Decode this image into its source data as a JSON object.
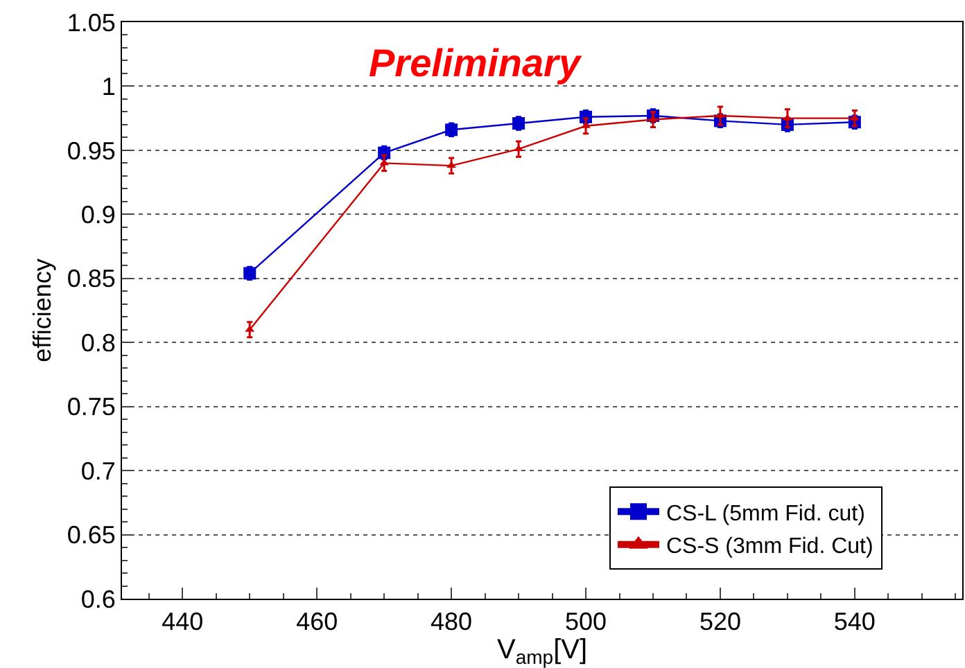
{
  "chart_data": {
    "type": "line",
    "xlabel": "V$_{amp}$[V]",
    "ylabel": "efficiency",
    "annotations": [
      "Preliminary"
    ],
    "x": [
      450,
      470,
      480,
      490,
      500,
      510,
      520,
      530,
      540
    ],
    "series": [
      {
        "name": "CS-L (5mm Fid. cut)",
        "color": "#0000cc",
        "marker": "square",
        "values": [
          0.854,
          0.948,
          0.966,
          0.971,
          0.976,
          0.977,
          0.973,
          0.97,
          0.972
        ],
        "errors": [
          0.005,
          0.005,
          0.005,
          0.005,
          0.005,
          0.005,
          0.005,
          0.005,
          0.005
        ]
      },
      {
        "name": "CS-S (3mm Fid. Cut)",
        "color": "#cc0000",
        "marker": "triangle",
        "values": [
          0.81,
          0.94,
          0.938,
          0.951,
          0.969,
          0.974,
          0.977,
          0.975,
          0.975
        ],
        "errors": [
          0.006,
          0.006,
          0.006,
          0.006,
          0.006,
          0.006,
          0.007,
          0.007,
          0.006
        ]
      }
    ],
    "xlim": [
      431,
      556
    ],
    "xticks": [
      440,
      460,
      480,
      500,
      520,
      540
    ],
    "ylim": [
      0.6,
      1.05
    ],
    "yticks": [
      0.6,
      0.65,
      0.7,
      0.75,
      0.8,
      0.85,
      0.9,
      0.95,
      1,
      1.05
    ],
    "grid": "y",
    "legend": "bottom right",
    "line_style": "solid"
  }
}
